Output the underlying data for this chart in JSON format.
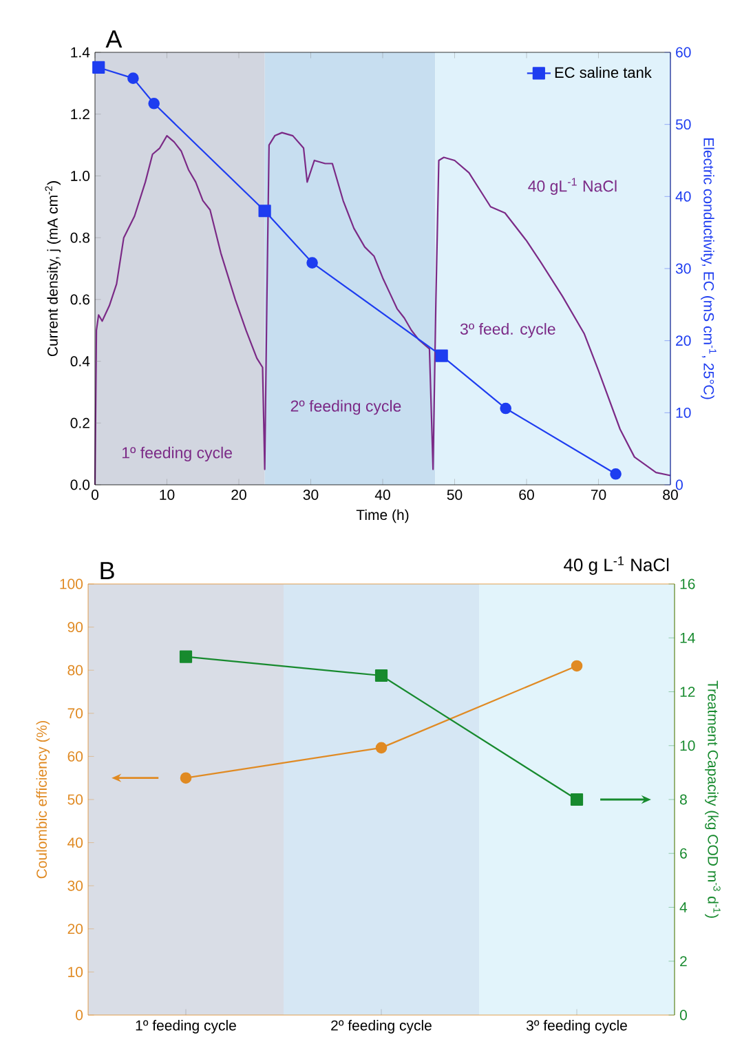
{
  "chart_data": [
    {
      "type": "line",
      "title": "A",
      "xlabel": "Time (h)",
      "ylabel": "Current density, j (mA cm$^{-2}$)",
      "y2label": "Electric conductivity, EC (mS cm$^{-1}$, 25°C)",
      "xlim": [
        0,
        80
      ],
      "xticks": [
        0,
        10,
        20,
        30,
        40,
        50,
        60,
        70,
        80
      ],
      "ylim": [
        0,
        1.4
      ],
      "yticks": [
        {
          "value": 0,
          "label": "0.0"
        },
        0.2,
        0.4,
        0.6,
        0.8,
        {
          "value": 1,
          "label": "1.0"
        },
        1.2,
        1.4
      ],
      "y2lim": [
        0,
        60
      ],
      "y2ticks": [
        0,
        10,
        20,
        30,
        40,
        50,
        60
      ],
      "legend": "top right",
      "series": [
        {
          "color": "#7b2a86",
          "x": [
            0,
            0.2,
            0.5,
            1,
            2,
            3,
            4,
            5.5,
            7,
            8,
            9,
            10,
            11,
            12,
            13,
            14,
            15,
            16,
            17.5,
            19.5,
            21,
            22.5,
            23.3,
            23.6,
            23.9,
            24.2,
            25,
            26,
            27.5,
            29,
            29.5,
            30.5,
            32,
            33,
            34.5,
            36,
            37.5,
            38.8,
            40,
            41,
            42,
            43,
            44,
            45,
            46.5,
            47,
            47.4,
            47.8,
            48.5,
            50,
            52,
            55,
            57,
            60,
            62,
            65,
            68,
            70,
            73,
            75,
            78,
            80
          ],
          "values": [
            0,
            0.5,
            0.55,
            0.53,
            0.58,
            0.65,
            0.8,
            0.87,
            0.98,
            1.07,
            1.09,
            1.13,
            1.11,
            1.08,
            1.02,
            0.98,
            0.92,
            0.89,
            0.75,
            0.6,
            0.5,
            0.41,
            0.38,
            0.05,
            0.6,
            1.1,
            1.13,
            1.14,
            1.13,
            1.09,
            0.98,
            1.05,
            1.04,
            1.04,
            0.92,
            0.83,
            0.77,
            0.74,
            0.67,
            0.62,
            0.57,
            0.54,
            0.5,
            0.47,
            0.44,
            0.05,
            0.6,
            1.05,
            1.06,
            1.05,
            1.01,
            0.9,
            0.88,
            0.79,
            0.72,
            0.61,
            0.49,
            0.37,
            0.18,
            0.09,
            0.04,
            0.03
          ]
        },
        {
          "name": "EC saline tank",
          "type": "line",
          "axis": "y2",
          "color": "#1e3df0",
          "x": [
            0.5,
            5.3,
            8.2,
            23.6,
            30.2,
            48.2,
            57.1,
            72.4
          ],
          "values": [
            57.9,
            56.4,
            52.9,
            38.0,
            30.8,
            17.9,
            10.6,
            1.5
          ]
        },
        {
          "type": "scatter",
          "axis": "y2",
          "marker": "square",
          "color": "#1e3df0",
          "x": [
            0.5,
            23.6,
            48.2
          ],
          "values": [
            57.9,
            38.0,
            17.9
          ]
        },
        {
          "type": "scatter",
          "axis": "y2",
          "marker": "circle",
          "color": "#1e3df0",
          "x": [
            5.3,
            8.2,
            30.2,
            57.1,
            72.4
          ],
          "values": [
            56.4,
            52.9,
            30.8,
            10.6,
            1.5
          ]
        }
      ],
      "bands": [
        {
          "axis": "x",
          "from": 0,
          "to": 23.6,
          "color": "#d2d6e0"
        },
        {
          "axis": "x",
          "from": 23.6,
          "to": 47.3,
          "color": "#c7def0"
        },
        {
          "axis": "x",
          "from": 47.3,
          "to": 80,
          "color": "#e0f2fb"
        }
      ],
      "annotations": [
        "1º feeding cycle",
        "2º feeding cycle",
        "3º feed. cycle",
        "40 gL$^{-1}$ NaCl"
      ]
    },
    {
      "type": "line",
      "title": "B",
      "categories": [
        "1º feeding cycle",
        "2º feeding cycle",
        "3º feeding cycle"
      ],
      "ylabel": "Coulombic efficiency (%)",
      "y2label": "Treatment Capacity (kg COD m$^{-3}$ d$^{-1}$)",
      "ylim": [
        0,
        100
      ],
      "yticks": [
        0,
        10,
        20,
        30,
        40,
        50,
        60,
        70,
        80,
        90,
        100
      ],
      "y2lim": [
        0,
        16
      ],
      "y2ticks": [
        0,
        2,
        4,
        6,
        8,
        10,
        12,
        14,
        16
      ],
      "series": [
        {
          "marker": "circle",
          "color": "#e08a23",
          "values": [
            55,
            62,
            81
          ]
        },
        {
          "marker": "square",
          "axis": "y2",
          "color": "#178a2e",
          "values": [
            13.3,
            12.6,
            8.0
          ]
        }
      ],
      "bands": [
        {
          "axis": "x",
          "from": "1º feeding cycle",
          "to": "1º feeding cycle",
          "color": "#d9dde6"
        },
        {
          "axis": "x",
          "from": "2º feeding cycle",
          "to": "2º feeding cycle",
          "color": "#d6e7f4"
        },
        {
          "axis": "x",
          "from": "3º feeding cycle",
          "to": "3º feeding cycle",
          "color": "#e2f4fb"
        }
      ],
      "annotations": [
        "40 g L$^{-1}$ NaCl"
      ]
    }
  ]
}
